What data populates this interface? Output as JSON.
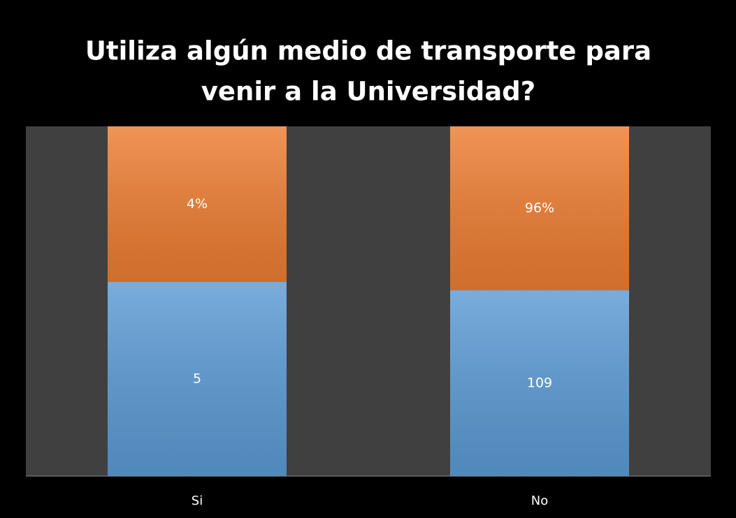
{
  "chart_data": {
    "type": "percent_stacked_bar",
    "title": [
      "Utiliza algún medio de transporte para",
      "venir a la Universidad?"
    ],
    "categories": [
      "Si",
      "No"
    ],
    "series": [
      {
        "color": "#5b9bd5",
        "values": [
          5,
          109
        ]
      },
      {
        "color": "#ed7d31",
        "values": [
          4,
          96
        ],
        "value_labels": [
          "4%",
          "96%"
        ]
      }
    ]
  }
}
